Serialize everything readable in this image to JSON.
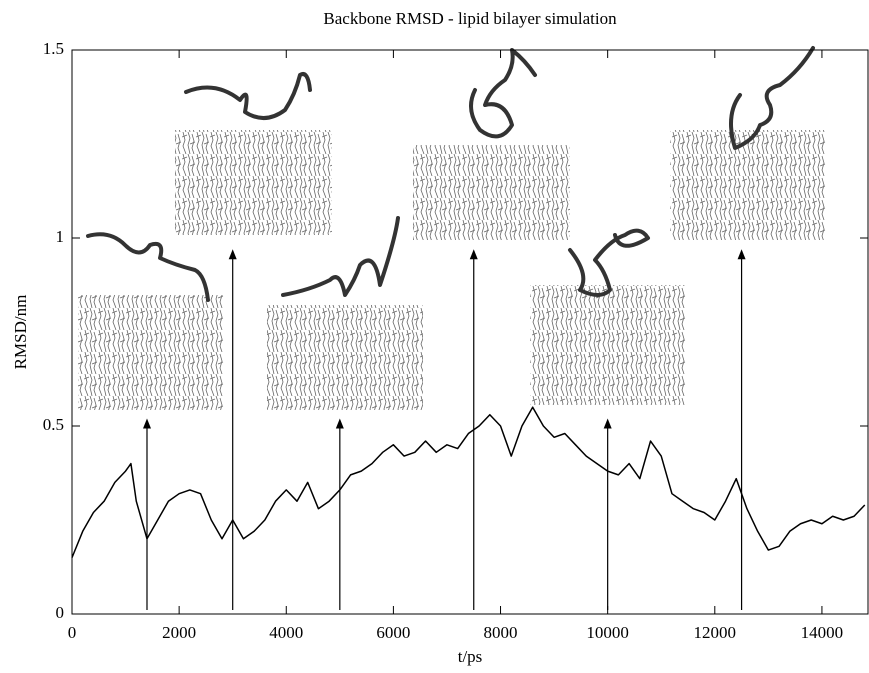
{
  "chart_data": {
    "type": "line",
    "title": "Backbone RMSD - lipid bilayer simulation",
    "x_label": "t/ps",
    "y_label": "RMSD/nm",
    "x": [
      0,
      200,
      400,
      600,
      800,
      1000,
      1100,
      1200,
      1400,
      1600,
      1800,
      2000,
      2200,
      2400,
      2600,
      2800,
      3000,
      3200,
      3400,
      3600,
      3800,
      4000,
      4200,
      4400,
      4600,
      4800,
      5000,
      5200,
      5400,
      5600,
      5800,
      6000,
      6200,
      6400,
      6600,
      6800,
      7000,
      7200,
      7400,
      7600,
      7800,
      8000,
      8200,
      8400,
      8600,
      8800,
      9000,
      9200,
      9400,
      9600,
      9800,
      10000,
      10200,
      10400,
      10600,
      10800,
      11000,
      11200,
      11400,
      11600,
      11800,
      12000,
      12200,
      12400,
      12600,
      12800,
      13000,
      13200,
      13400,
      13600,
      13800,
      14000,
      14200,
      14400,
      14600,
      14800
    ],
    "values": [
      0.15,
      0.22,
      0.27,
      0.3,
      0.35,
      0.38,
      0.4,
      0.3,
      0.2,
      0.25,
      0.3,
      0.32,
      0.33,
      0.32,
      0.25,
      0.2,
      0.25,
      0.2,
      0.22,
      0.25,
      0.3,
      0.33,
      0.3,
      0.35,
      0.28,
      0.3,
      0.33,
      0.37,
      0.38,
      0.4,
      0.43,
      0.45,
      0.42,
      0.43,
      0.46,
      0.43,
      0.45,
      0.44,
      0.48,
      0.5,
      0.53,
      0.5,
      0.42,
      0.5,
      0.55,
      0.5,
      0.47,
      0.48,
      0.45,
      0.42,
      0.4,
      0.38,
      0.37,
      0.4,
      0.36,
      0.46,
      0.42,
      0.32,
      0.3,
      0.28,
      0.27,
      0.25,
      0.3,
      0.36,
      0.28,
      0.22,
      0.17,
      0.18,
      0.22,
      0.24,
      0.25,
      0.24,
      0.26,
      0.25,
      0.26,
      0.29
    ],
    "color": "#000000",
    "arrows": [
      {
        "x": 1400,
        "y": 0.52
      },
      {
        "x": 3000,
        "y": 0.97
      },
      {
        "x": 5000,
        "y": 0.52
      },
      {
        "x": 7500,
        "y": 0.97
      },
      {
        "x": 10000,
        "y": 0.52
      },
      {
        "x": 12500,
        "y": 0.97
      }
    ],
    "xlim": [
      0,
      14860
    ],
    "xticks": [
      0,
      2000,
      4000,
      6000,
      8000,
      10000,
      12000,
      14000
    ],
    "ylim": [
      0,
      1.5
    ],
    "yticks": [
      0,
      0.5,
      1,
      1.5
    ]
  }
}
